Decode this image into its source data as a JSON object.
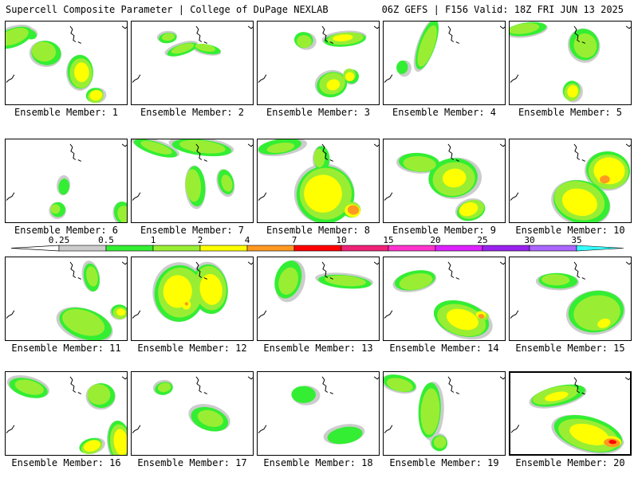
{
  "header": {
    "title_left": "Supercell Composite Parameter | College of DuPage NEXLAB",
    "title_right": "06Z GEFS | F156 Valid: 18Z FRI JUN 13 2025"
  },
  "legend": {
    "levels": [
      "0.25",
      "0.5",
      "1",
      "2",
      "4",
      "7",
      "10",
      "15",
      "20",
      "25",
      "30",
      "35"
    ],
    "colors": [
      "#cccccc",
      "#33ee33",
      "#99ee33",
      "#ffff00",
      "#ff9922",
      "#ff0000",
      "#ee2277",
      "#ff33cc",
      "#dd22ff",
      "#9922ee",
      "#aa66ff",
      "#33ffff"
    ],
    "under_color": "#ffffff"
  },
  "members": [
    {
      "label": "Ensemble Member: 1"
    },
    {
      "label": "Ensemble Member: 2"
    },
    {
      "label": "Ensemble Member: 3"
    },
    {
      "label": "Ensemble Member: 4"
    },
    {
      "label": "Ensemble Member: 5"
    },
    {
      "label": "Ensemble Member: 6"
    },
    {
      "label": "Ensemble Member: 7"
    },
    {
      "label": "Ensemble Member: 8"
    },
    {
      "label": "Ensemble Member: 9"
    },
    {
      "label": "Ensemble Member: 10"
    },
    {
      "label": "Ensemble Member: 11"
    },
    {
      "label": "Ensemble Member: 12"
    },
    {
      "label": "Ensemble Member: 13"
    },
    {
      "label": "Ensemble Member: 14"
    },
    {
      "label": "Ensemble Member: 15"
    },
    {
      "label": "Ensemble Member: 16"
    },
    {
      "label": "Ensemble Member: 17"
    },
    {
      "label": "Ensemble Member: 18"
    },
    {
      "label": "Ensemble Member: 19"
    },
    {
      "label": "Ensemble Member: 20"
    }
  ],
  "selected_member": 20
}
